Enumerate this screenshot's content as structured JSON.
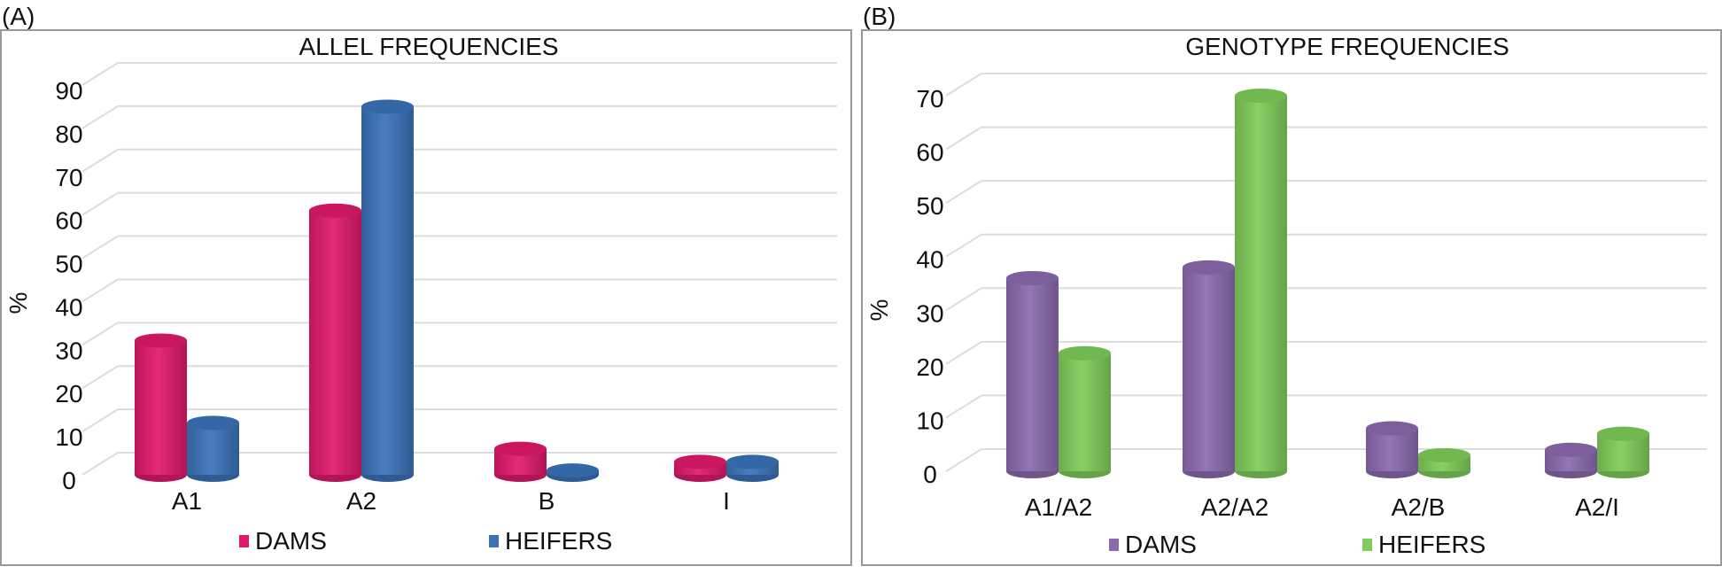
{
  "chart_data": [
    {
      "panel_label": "(A)",
      "type": "bar",
      "title": "ALLEL FREQUENCIES",
      "ylabel": "%",
      "xlabel": "",
      "categories": [
        "A1",
        "A2",
        "B",
        "I"
      ],
      "ylim": [
        0,
        90
      ],
      "yticks": [
        "0",
        "10",
        "20",
        "30",
        "40",
        "50",
        "60",
        "70",
        "80",
        "90"
      ],
      "grid": true,
      "legend_position": "bottom",
      "series": [
        {
          "name": "DAMS",
          "color": "#e0196a",
          "values": [
            31,
            61,
            6,
            3
          ]
        },
        {
          "name": "HEIFERS",
          "color": "#3a72b8",
          "values": [
            12,
            85,
            1,
            3
          ]
        }
      ]
    },
    {
      "panel_label": "(B)",
      "type": "bar",
      "title": "GENOTYPE FREQUENCIES",
      "ylabel": "%",
      "xlabel": "",
      "categories": [
        "A1/A2",
        "A2/A2",
        "A2/B",
        "A2/I"
      ],
      "ylim": [
        0,
        70
      ],
      "yticks": [
        "0",
        "10",
        "20",
        "30",
        "40",
        "50",
        "60",
        "70"
      ],
      "grid": true,
      "legend_position": "bottom",
      "series": [
        {
          "name": "DAMS",
          "color": "#8a6aad",
          "values": [
            36,
            38,
            8,
            4
          ]
        },
        {
          "name": "HEIFERS",
          "color": "#7fcc5a",
          "values": [
            22,
            70,
            3,
            7
          ]
        }
      ]
    }
  ]
}
